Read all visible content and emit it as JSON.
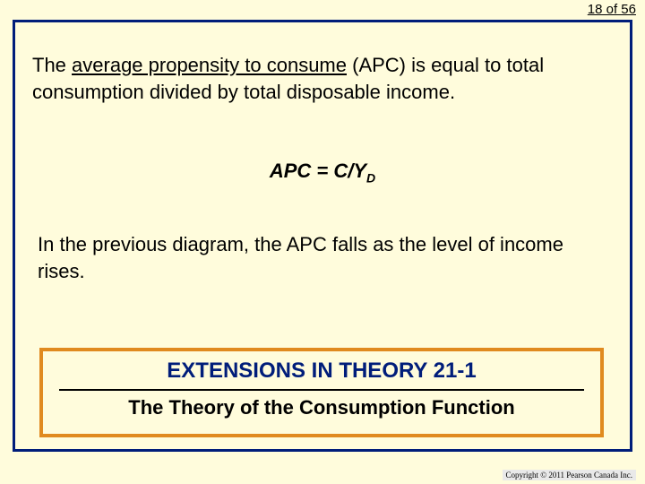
{
  "page": {
    "indicator": "18 of 56",
    "background_color": "#fffcdc",
    "frame_border_color": "#001d7a",
    "frame_border_width": 3
  },
  "paragraph1": {
    "prefix": "The ",
    "underlined": "average propensity to consume",
    "suffix": " (APC) is equal to total consumption divided by total disposable income.",
    "fontsize": 22
  },
  "formula": {
    "lhs": "APC = C/Y",
    "subscript": "D",
    "fontsize": 22,
    "italic": true,
    "bold": true
  },
  "paragraph2": {
    "text": "In the previous diagram, the APC falls as the level of income rises.",
    "fontsize": 22
  },
  "callout": {
    "title": "EXTENSIONS IN THEORY 21-1",
    "subtitle": "The Theory of the Consumption Function",
    "border_color": "#e08a1f",
    "border_width": 4,
    "title_color": "#001d7a",
    "title_fontsize": 24,
    "subtitle_fontsize": 22,
    "divider_color": "#000000"
  },
  "footer": {
    "copyright": "Copyright © 2011 Pearson Canada Inc."
  }
}
